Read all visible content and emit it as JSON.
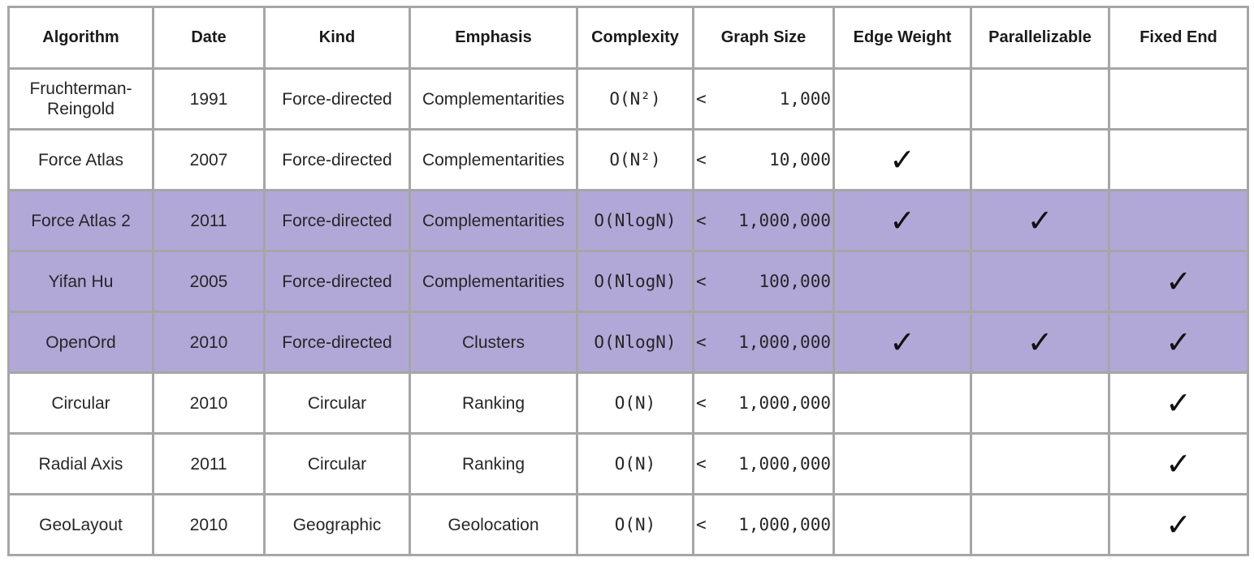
{
  "headers": [
    "Algorithm",
    "Date",
    "Kind",
    "Emphasis",
    "Complexity",
    "Graph Size",
    "Edge Weight",
    "Parallelizable",
    "Fixed End"
  ],
  "check_symbol": "✓",
  "highlight_color": "#b1a8d7",
  "rows": [
    {
      "algorithm": "Fruchterman-Reingold",
      "date": "1991",
      "kind": "Force-directed",
      "emphasis": "Complementarities",
      "complexity": "O(N²)",
      "size_prefix": "<",
      "size_value": "1,000",
      "edge_weight": false,
      "parallelizable": false,
      "fixed_end": false,
      "highlighted": false
    },
    {
      "algorithm": "Force Atlas",
      "date": "2007",
      "kind": "Force-directed",
      "emphasis": "Complementarities",
      "complexity": "O(N²)",
      "size_prefix": "<",
      "size_value": "10,000",
      "edge_weight": true,
      "parallelizable": false,
      "fixed_end": false,
      "highlighted": false
    },
    {
      "algorithm": "Force Atlas 2",
      "date": "2011",
      "kind": "Force-directed",
      "emphasis": "Complementarities",
      "complexity": "O(NlogN)",
      "size_prefix": "<",
      "size_value": "1,000,000",
      "edge_weight": true,
      "parallelizable": true,
      "fixed_end": false,
      "highlighted": true
    },
    {
      "algorithm": "Yifan Hu",
      "date": "2005",
      "kind": "Force-directed",
      "emphasis": "Complementarities",
      "complexity": "O(NlogN)",
      "size_prefix": "<",
      "size_value": "100,000",
      "edge_weight": false,
      "parallelizable": false,
      "fixed_end": true,
      "highlighted": true
    },
    {
      "algorithm": "OpenOrd",
      "date": "2010",
      "kind": "Force-directed",
      "emphasis": "Clusters",
      "complexity": "O(NlogN)",
      "size_prefix": "<",
      "size_value": "1,000,000",
      "edge_weight": true,
      "parallelizable": true,
      "fixed_end": true,
      "highlighted": true
    },
    {
      "algorithm": "Circular",
      "date": "2010",
      "kind": "Circular",
      "emphasis": "Ranking",
      "complexity": "O(N)",
      "size_prefix": "<",
      "size_value": "1,000,000",
      "edge_weight": false,
      "parallelizable": false,
      "fixed_end": true,
      "highlighted": false
    },
    {
      "algorithm": "Radial Axis",
      "date": "2011",
      "kind": "Circular",
      "emphasis": "Ranking",
      "complexity": "O(N)",
      "size_prefix": "<",
      "size_value": "1,000,000",
      "edge_weight": false,
      "parallelizable": false,
      "fixed_end": true,
      "highlighted": false
    },
    {
      "algorithm": "GeoLayout",
      "date": "2010",
      "kind": "Geographic",
      "emphasis": "Geolocation",
      "complexity": "O(N)",
      "size_prefix": "<",
      "size_value": "1,000,000",
      "edge_weight": false,
      "parallelizable": false,
      "fixed_end": true,
      "highlighted": false
    }
  ]
}
